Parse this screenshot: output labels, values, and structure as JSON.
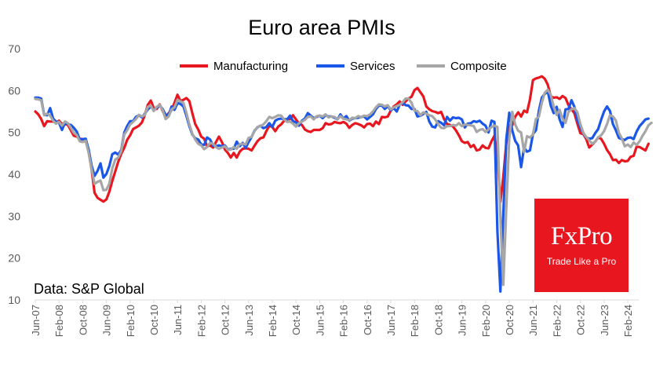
{
  "chart_data": {
    "type": "line",
    "title": "Euro area PMIs",
    "xlabel": "",
    "ylabel": "",
    "ylim": [
      10,
      70
    ],
    "yticks": [
      10,
      20,
      30,
      40,
      50,
      60,
      70
    ],
    "grid": false,
    "legend_position": "top-center",
    "x_start": "Jun-07",
    "x_tick_labels": [
      "Jun-07",
      "Feb-08",
      "Oct-08",
      "Jun-09",
      "Feb-10",
      "Oct-10",
      "Jun-11",
      "Feb-12",
      "Oct-12",
      "Jun-13",
      "Feb-14",
      "Oct-14",
      "Jun-15",
      "Feb-16",
      "Oct-16",
      "Jun-17",
      "Feb-18",
      "Oct-18",
      "Jun-19",
      "Feb-20",
      "Oct-20",
      "Jun-21",
      "Feb-22",
      "Oct-22",
      "Jun-23",
      "Feb-24"
    ],
    "annotation": "Data: S&P Global",
    "series": [
      {
        "name": "Manufacturing",
        "color": "#e8171f",
        "values": [
          55.0,
          54.3,
          53.2,
          51.5,
          52.7,
          52.6,
          52.6,
          52.3,
          52.8,
          52.0,
          52.0,
          51.8,
          50.5,
          49.2,
          49.0,
          48.5,
          48.4,
          48.0,
          45.4,
          41.2,
          35.6,
          34.4,
          33.9,
          33.5,
          34.0,
          35.9,
          38.4,
          40.7,
          43.0,
          44.9,
          46.3,
          48.2,
          49.3,
          50.8,
          51.2,
          51.6,
          52.4,
          54.2,
          56.6,
          57.6,
          55.8,
          55.6,
          56.7,
          55.1,
          53.7,
          54.6,
          55.3,
          57.1,
          59.0,
          57.5,
          57.8,
          58.2,
          57.5,
          54.6,
          52.0,
          50.7,
          49.0,
          48.5,
          46.7,
          46.9,
          46.4,
          47.7,
          49.0,
          47.7,
          45.9,
          45.1,
          44.0,
          45.1,
          44.0,
          45.4,
          46.1,
          46.2,
          46.1,
          45.7,
          46.8,
          47.9,
          48.6,
          48.8,
          50.3,
          51.6,
          51.3,
          50.3,
          51.4,
          51.9,
          52.8,
          53.2,
          53.2,
          54.1,
          53.1,
          52.1,
          51.8,
          50.7,
          50.3,
          50.1,
          50.6,
          50.6,
          50.6,
          51.0,
          52.2,
          51.9,
          52.0,
          52.5,
          52.3,
          52.2,
          52.5,
          52.1,
          51.1,
          51.8,
          52.2,
          52.0,
          51.7,
          51.2,
          52.0,
          52.1,
          51.5,
          52.6,
          52.0,
          53.7,
          53.6,
          53.8,
          55.2,
          56.2,
          56.7,
          57.4,
          56.6,
          57.4,
          58.1,
          58.5,
          60.1,
          60.6,
          59.6,
          58.6,
          56.2,
          55.5,
          55.1,
          54.9,
          54.6,
          54.9,
          53.2,
          52.0,
          51.8,
          51.4,
          50.5,
          49.3,
          47.9,
          47.5,
          47.7,
          46.5,
          47.0,
          45.7,
          45.9,
          46.9,
          46.3,
          46.2,
          47.9,
          49.2,
          44.5,
          33.4,
          39.4,
          47.4,
          51.8,
          51.7,
          53.7,
          54.8,
          53.8,
          55.2,
          54.8,
          57.9,
          62.5,
          62.9,
          63.1,
          63.4,
          62.8,
          61.4,
          58.6,
          58.3,
          58.4,
          58.0,
          58.7,
          58.2,
          56.5,
          55.5,
          54.6,
          52.1,
          49.8,
          49.6,
          48.4,
          46.4,
          47.1,
          47.8,
          48.8,
          48.5,
          47.3,
          45.8,
          44.8,
          43.4,
          43.5,
          42.7,
          43.4,
          43.1,
          43.2,
          44.2,
          44.4,
          46.6,
          46.5,
          46.1,
          45.7,
          47.3
        ]
      },
      {
        "name": "Services",
        "color": "#1a56e8",
        "values": [
          58.3,
          58.3,
          58.1,
          54.2,
          54.1,
          55.8,
          53.3,
          52.6,
          52.3,
          50.6,
          52.3,
          52.0,
          51.8,
          51.1,
          50.2,
          48.3,
          48.4,
          48.5,
          45.9,
          42.1,
          39.6,
          40.8,
          42.6,
          39.2,
          40.1,
          42.0,
          44.8,
          45.2,
          44.7,
          45.8,
          49.9,
          51.5,
          52.7,
          52.7,
          53.7,
          54.1,
          53.6,
          54.5,
          55.5,
          56.2,
          55.4,
          55.9,
          56.4,
          55.6,
          54.2,
          54.1,
          56.2,
          55.4,
          57.0,
          56.8,
          56.2,
          54.0,
          51.5,
          49.5,
          48.6,
          48.3,
          47.1,
          47.0,
          48.8,
          48.3,
          46.8,
          46.7,
          46.9,
          46.7,
          46.9,
          45.9,
          46.1,
          46.1,
          47.8,
          46.7,
          47.5,
          46.3,
          47.7,
          48.9,
          50.4,
          51.2,
          51.6,
          51.0,
          51.3,
          52.2,
          51.3,
          52.8,
          53.2,
          53.3,
          53.2,
          53.1,
          54.0,
          52.7,
          52.4,
          51.6,
          52.8,
          53.3,
          54.6,
          54.0,
          53.4,
          53.7,
          54.0,
          53.4,
          54.1,
          53.8,
          53.8,
          53.5,
          53.1,
          54.3,
          53.3,
          53.9,
          52.8,
          53.3,
          53.4,
          53.5,
          53.7,
          53.8,
          53.1,
          53.7,
          54.3,
          55.6,
          56.4,
          56.4,
          55.6,
          56.3,
          55.3,
          55.8,
          55.0,
          56.6,
          57.0,
          56.5,
          56.4,
          55.6,
          55.6,
          53.8,
          54.0,
          54.4,
          54.9,
          52.6,
          51.4,
          51.2,
          52.7,
          52.3,
          51.7,
          53.7,
          52.8,
          53.6,
          53.4,
          53.5,
          53.1,
          51.2,
          52.1,
          52.2,
          52.7,
          52.5,
          52.8,
          52.1,
          51.6,
          50.0,
          52.8,
          52.5,
          26.4,
          12.0,
          30.5,
          48.3,
          54.7,
          50.5,
          48.0,
          46.9,
          41.7,
          46.4,
          45.4,
          45.7,
          49.6,
          50.5,
          55.2,
          58.3,
          59.2,
          59.8,
          56.4,
          54.6,
          56.1,
          53.1,
          51.3,
          55.5,
          55.6,
          57.7,
          56.1,
          53.0,
          51.2,
          49.8,
          48.8,
          48.5,
          48.6,
          49.8,
          50.8,
          53.0,
          55.0,
          56.2,
          55.1,
          52.0,
          50.5,
          48.7,
          48.4,
          48.2,
          48.7,
          48.8,
          48.4,
          50.2,
          51.5,
          52.3,
          53.1,
          53.3
        ]
      },
      {
        "name": "Composite",
        "color": "#a6a6a6",
        "values": [
          58.0,
          57.9,
          57.7,
          54.1,
          54.5,
          54.0,
          52.8,
          52.1,
          52.5,
          51.6,
          52.6,
          52.2,
          51.1,
          49.9,
          49.4,
          47.9,
          47.7,
          48.0,
          45.1,
          41.3,
          37.7,
          38.2,
          38.5,
          36.2,
          36.3,
          37.8,
          41.4,
          43.5,
          44.0,
          45.5,
          49.5,
          50.5,
          51.9,
          52.5,
          53.2,
          54.2,
          53.8,
          54.2,
          56.1,
          56.4,
          55.1,
          56.1,
          56.6,
          55.3,
          53.2,
          53.8,
          55.5,
          56.0,
          57.8,
          57.4,
          57.0,
          54.7,
          51.9,
          49.7,
          48.3,
          47.3,
          46.9,
          46.0,
          46.5,
          47.5,
          47.3,
          46.5,
          46.1,
          46.4,
          46.7,
          45.8,
          45.9,
          46.5,
          46.1,
          47.2,
          47.3,
          47.1,
          48.7,
          48.9,
          50.3,
          51.3,
          51.5,
          51.9,
          52.7,
          53.7,
          53.4,
          53.7,
          54.1,
          54.0,
          53.1,
          52.5,
          52.6,
          52.1,
          51.4,
          52.2,
          52.6,
          53.0,
          53.7,
          53.8,
          53.1,
          53.9,
          54.0,
          53.8,
          54.3,
          53.6,
          53.8,
          53.7,
          53.1,
          53.9,
          53.3,
          53.1,
          52.9,
          53.5,
          53.4,
          53.9,
          53.6,
          54.0,
          53.9,
          54.3,
          55.0,
          56.0,
          56.7,
          56.6,
          56.2,
          56.5,
          55.5,
          56.0,
          56.3,
          56.6,
          57.2,
          58.1,
          58.1,
          57.1,
          55.2,
          55.1,
          54.1,
          54.8,
          54.5,
          54.1,
          53.9,
          53.1,
          52.0,
          51.1,
          51.0,
          51.5,
          51.5,
          51.8,
          51.6,
          52.2,
          51.5,
          51.9,
          51.8,
          51.7,
          51.5,
          50.1,
          50.6,
          50.8,
          50.1,
          50.7,
          51.3,
          51.6,
          51.3,
          29.7,
          13.6,
          31.9,
          48.5,
          54.9,
          51.9,
          50.4,
          50.0,
          45.3,
          49.1,
          48.8,
          49.5,
          53.2,
          53.8,
          57.1,
          59.5,
          60.2,
          59.0,
          56.2,
          54.2,
          55.4,
          53.3,
          52.3,
          54.9,
          55.5,
          55.8,
          54.8,
          52.0,
          49.9,
          48.9,
          48.1,
          47.3,
          47.8,
          48.8,
          49.3,
          50.3,
          52.0,
          54.1,
          53.8,
          52.8,
          49.9,
          48.6,
          46.7,
          47.1,
          46.5,
          47.6,
          47.0,
          47.9,
          49.2,
          50.3,
          51.7,
          52.3
        ]
      }
    ]
  },
  "branding": {
    "logo_name": "FxPro",
    "logo_tagline": "Trade Like a Pro",
    "logo_color": "#e8171f"
  }
}
